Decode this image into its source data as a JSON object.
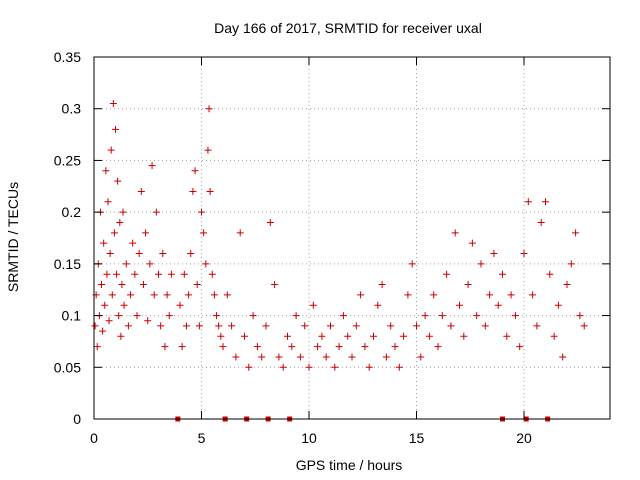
{
  "chart_data": {
    "type": "scatter",
    "title": "Day 166 of 2017, SRMTID for receiver uxal",
    "xlabel": "GPS time / hours",
    "ylabel": "SRMTID / TECUs",
    "xlim": [
      0,
      24
    ],
    "ylim": [
      0,
      0.35
    ],
    "xticks": [
      0,
      5,
      10,
      15,
      20
    ],
    "xtick_labels": [
      "0",
      "5",
      "10",
      "15",
      "20"
    ],
    "yticks": [
      0,
      0.05,
      0.1,
      0.15,
      0.2,
      0.25,
      0.3,
      0.35
    ],
    "ytick_labels": [
      "0",
      "0.05",
      "0.1",
      "0.15",
      "0.2",
      "0.25",
      "0.3",
      "0.35"
    ],
    "grid": true,
    "marker": "+",
    "color": "#cc0000",
    "description": "dense cloud of points",
    "series": [
      {
        "name": "SRMTID",
        "points": [
          [
            0.05,
            0.09
          ],
          [
            0.1,
            0.12
          ],
          [
            0.15,
            0.07
          ],
          [
            0.2,
            0.15
          ],
          [
            0.25,
            0.1
          ],
          [
            0.3,
            0.2
          ],
          [
            0.35,
            0.13
          ],
          [
            0.4,
            0.085
          ],
          [
            0.45,
            0.17
          ],
          [
            0.5,
            0.11
          ],
          [
            0.55,
            0.24
          ],
          [
            0.6,
            0.14
          ],
          [
            0.65,
            0.21
          ],
          [
            0.7,
            0.095
          ],
          [
            0.75,
            0.16
          ],
          [
            0.8,
            0.26
          ],
          [
            0.85,
            0.12
          ],
          [
            0.9,
            0.305
          ],
          [
            0.95,
            0.18
          ],
          [
            1.0,
            0.28
          ],
          [
            1.05,
            0.14
          ],
          [
            1.1,
            0.23
          ],
          [
            1.15,
            0.1
          ],
          [
            1.2,
            0.19
          ],
          [
            1.25,
            0.08
          ],
          [
            1.3,
            0.13
          ],
          [
            1.35,
            0.2
          ],
          [
            1.4,
            0.11
          ],
          [
            1.5,
            0.15
          ],
          [
            1.6,
            0.09
          ],
          [
            1.7,
            0.12
          ],
          [
            1.8,
            0.17
          ],
          [
            1.9,
            0.14
          ],
          [
            2.0,
            0.1
          ],
          [
            2.1,
            0.16
          ],
          [
            2.2,
            0.22
          ],
          [
            2.3,
            0.13
          ],
          [
            2.4,
            0.18
          ],
          [
            2.5,
            0.095
          ],
          [
            2.6,
            0.15
          ],
          [
            2.7,
            0.245
          ],
          [
            2.8,
            0.12
          ],
          [
            2.9,
            0.2
          ],
          [
            3.0,
            0.14
          ],
          [
            3.1,
            0.09
          ],
          [
            3.2,
            0.16
          ],
          [
            3.3,
            0.07
          ],
          [
            3.4,
            0.12
          ],
          [
            3.5,
            0.1
          ],
          [
            3.6,
            0.14
          ],
          [
            4.0,
            0.11
          ],
          [
            4.1,
            0.07
          ],
          [
            4.2,
            0.14
          ],
          [
            4.3,
            0.09
          ],
          [
            4.4,
            0.12
          ],
          [
            4.5,
            0.16
          ],
          [
            4.6,
            0.22
          ],
          [
            4.7,
            0.24
          ],
          [
            4.8,
            0.13
          ],
          [
            4.9,
            0.09
          ],
          [
            5.0,
            0.2
          ],
          [
            5.1,
            0.18
          ],
          [
            5.2,
            0.15
          ],
          [
            5.3,
            0.26
          ],
          [
            5.35,
            0.3
          ],
          [
            5.4,
            0.22
          ],
          [
            5.5,
            0.14
          ],
          [
            5.6,
            0.12
          ],
          [
            5.7,
            0.1
          ],
          [
            5.8,
            0.09
          ],
          [
            5.9,
            0.08
          ],
          [
            6.0,
            0.07
          ],
          [
            6.2,
            0.12
          ],
          [
            6.4,
            0.09
          ],
          [
            6.6,
            0.06
          ],
          [
            6.8,
            0.18
          ],
          [
            7.0,
            0.08
          ],
          [
            7.2,
            0.05
          ],
          [
            7.4,
            0.1
          ],
          [
            7.6,
            0.07
          ],
          [
            7.8,
            0.06
          ],
          [
            8.0,
            0.09
          ],
          [
            8.2,
            0.19
          ],
          [
            8.4,
            0.13
          ],
          [
            8.6,
            0.06
          ],
          [
            8.8,
            0.05
          ],
          [
            9.0,
            0.08
          ],
          [
            9.2,
            0.07
          ],
          [
            9.4,
            0.1
          ],
          [
            9.6,
            0.06
          ],
          [
            9.8,
            0.09
          ],
          [
            10.0,
            0.05
          ],
          [
            10.2,
            0.11
          ],
          [
            10.4,
            0.07
          ],
          [
            10.6,
            0.08
          ],
          [
            10.8,
            0.06
          ],
          [
            11.0,
            0.09
          ],
          [
            11.2,
            0.05
          ],
          [
            11.4,
            0.07
          ],
          [
            11.6,
            0.1
          ],
          [
            11.8,
            0.08
          ],
          [
            12.0,
            0.06
          ],
          [
            12.2,
            0.09
          ],
          [
            12.4,
            0.12
          ],
          [
            12.6,
            0.07
          ],
          [
            12.8,
            0.05
          ],
          [
            13.0,
            0.08
          ],
          [
            13.2,
            0.11
          ],
          [
            13.4,
            0.13
          ],
          [
            13.6,
            0.06
          ],
          [
            13.8,
            0.09
          ],
          [
            14.0,
            0.07
          ],
          [
            14.2,
            0.05
          ],
          [
            14.4,
            0.08
          ],
          [
            14.6,
            0.12
          ],
          [
            14.8,
            0.15
          ],
          [
            15.0,
            0.09
          ],
          [
            15.2,
            0.06
          ],
          [
            15.4,
            0.1
          ],
          [
            15.6,
            0.08
          ],
          [
            15.8,
            0.12
          ],
          [
            16.0,
            0.07
          ],
          [
            16.2,
            0.1
          ],
          [
            16.4,
            0.14
          ],
          [
            16.6,
            0.09
          ],
          [
            16.8,
            0.18
          ],
          [
            17.0,
            0.11
          ],
          [
            17.2,
            0.08
          ],
          [
            17.4,
            0.13
          ],
          [
            17.6,
            0.17
          ],
          [
            17.8,
            0.1
          ],
          [
            18.0,
            0.15
          ],
          [
            18.2,
            0.09
          ],
          [
            18.4,
            0.12
          ],
          [
            18.6,
            0.16
          ],
          [
            18.8,
            0.11
          ],
          [
            19.0,
            0.14
          ],
          [
            19.2,
            0.08
          ],
          [
            19.4,
            0.12
          ],
          [
            19.6,
            0.1
          ],
          [
            19.8,
            0.07
          ],
          [
            20.0,
            0.16
          ],
          [
            20.2,
            0.21
          ],
          [
            20.4,
            0.12
          ],
          [
            20.6,
            0.09
          ],
          [
            20.8,
            0.19
          ],
          [
            21.0,
            0.21
          ],
          [
            21.2,
            0.14
          ],
          [
            21.4,
            0.08
          ],
          [
            21.6,
            0.11
          ],
          [
            21.8,
            0.06
          ],
          [
            22.0,
            0.13
          ],
          [
            22.2,
            0.15
          ],
          [
            22.4,
            0.18
          ],
          [
            22.6,
            0.1
          ],
          [
            22.8,
            0.09
          ]
        ]
      }
    ],
    "gap_markers_x": [
      3.9,
      6.1,
      7.1,
      8.1,
      9.1,
      19.0,
      20.1,
      21.1
    ]
  }
}
